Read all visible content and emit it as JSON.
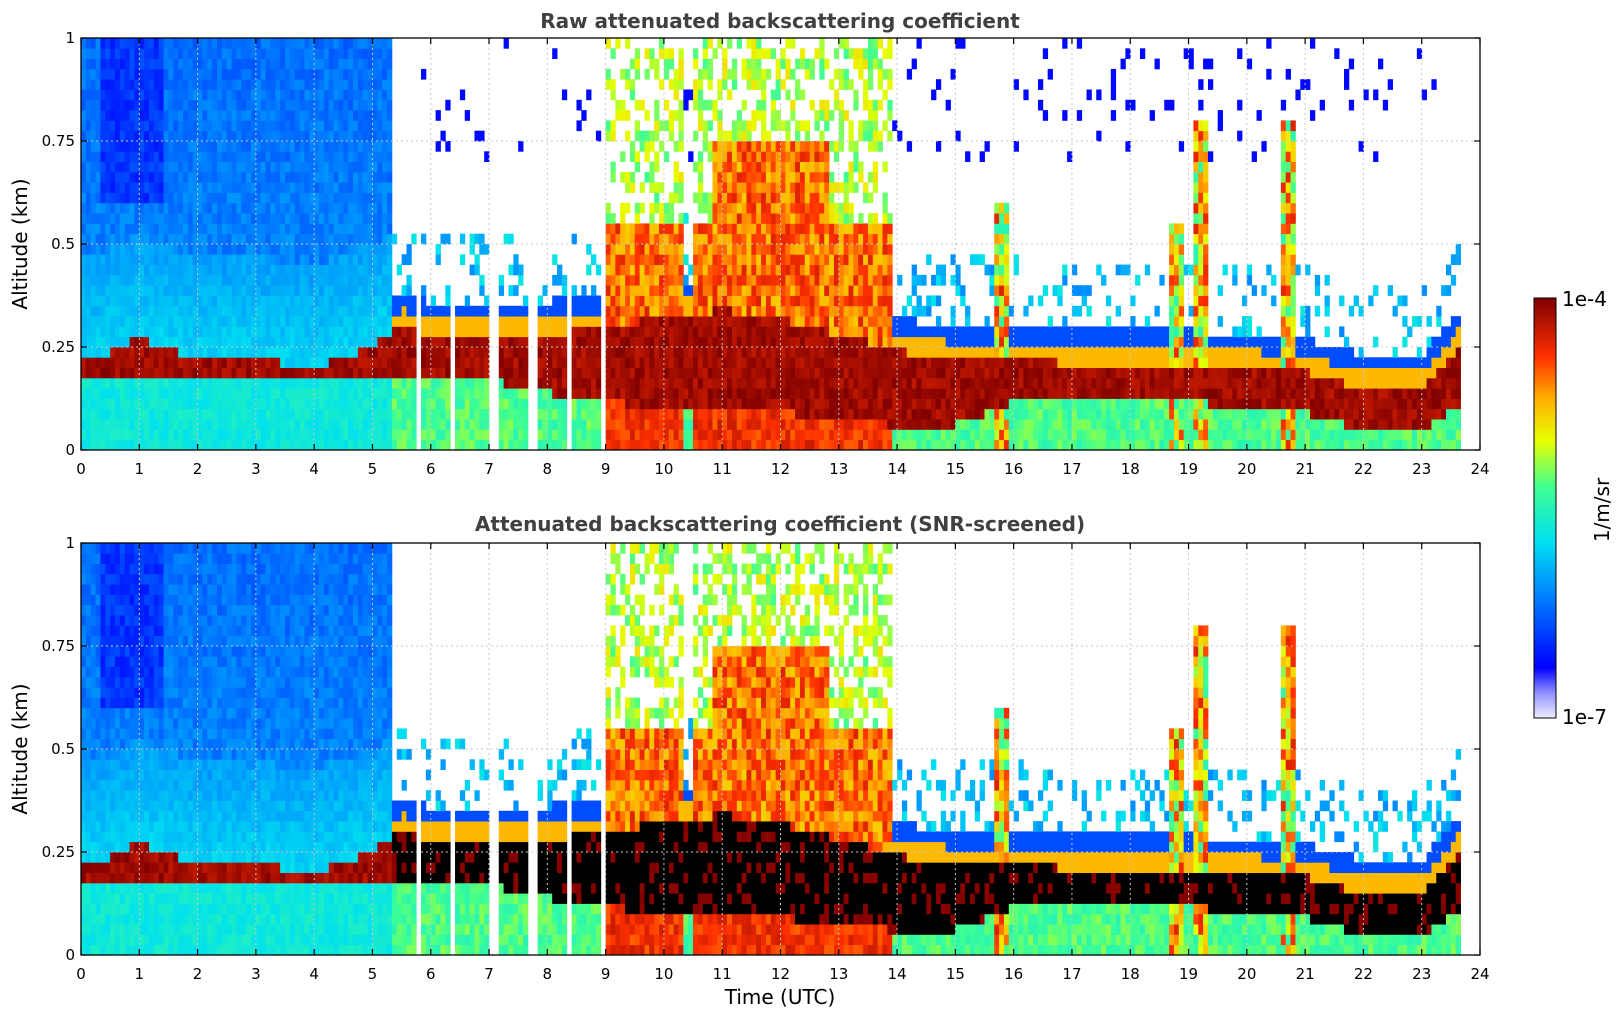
{
  "chart_data": [
    {
      "type": "heatmap",
      "title": "Raw attenuated backscattering coefficient",
      "xlabel": "",
      "ylabel": "Altitude (km)",
      "xlim": [
        0,
        24
      ],
      "ylim": [
        0,
        1
      ],
      "x_ticks": [
        "0",
        "1",
        "2",
        "3",
        "4",
        "5",
        "6",
        "7",
        "8",
        "9",
        "10",
        "11",
        "12",
        "13",
        "14",
        "15",
        "16",
        "17",
        "18",
        "19",
        "20",
        "21",
        "22",
        "23",
        "24"
      ],
      "y_ticks": [
        "0",
        "0.25",
        "0.5",
        "0.75",
        "1"
      ],
      "grid": true,
      "screened": false
    },
    {
      "type": "heatmap",
      "title": "Attenuated backscattering coefficient (SNR-screened)",
      "xlabel": "Time (UTC)",
      "ylabel": "Altitude (km)",
      "xlim": [
        0,
        24
      ],
      "ylim": [
        0,
        1
      ],
      "x_ticks": [
        "0",
        "1",
        "2",
        "3",
        "4",
        "5",
        "6",
        "7",
        "8",
        "9",
        "10",
        "11",
        "12",
        "13",
        "14",
        "15",
        "16",
        "17",
        "18",
        "19",
        "20",
        "21",
        "22",
        "23",
        "24"
      ],
      "y_ticks": [
        "0",
        "0.25",
        "0.5",
        "0.75",
        "1"
      ],
      "grid": true,
      "screened": true
    }
  ],
  "colorbar": {
    "label": "1/m/sr",
    "max_label": "1e-4",
    "min_label": "1e-7",
    "scale": "log",
    "colormap": "jet"
  },
  "features": {
    "layer_top_km": [
      [
        0,
        0.22
      ],
      [
        0.3,
        0.22
      ],
      [
        0.6,
        0.25
      ],
      [
        1,
        0.27
      ],
      [
        1.4,
        0.25
      ],
      [
        2,
        0.22
      ],
      [
        3,
        0.22
      ],
      [
        4,
        0.2
      ],
      [
        5,
        0.25
      ],
      [
        5.5,
        0.3
      ],
      [
        6,
        0.28
      ],
      [
        7,
        0.28
      ],
      [
        8,
        0.28
      ],
      [
        9,
        0.3
      ],
      [
        10,
        0.32
      ],
      [
        11,
        0.34
      ],
      [
        12,
        0.32
      ],
      [
        12.5,
        0.3
      ],
      [
        13,
        0.28
      ],
      [
        13.8,
        0.25
      ],
      [
        14,
        0.24
      ],
      [
        15,
        0.22
      ],
      [
        16,
        0.22
      ],
      [
        17,
        0.21
      ],
      [
        18,
        0.21
      ],
      [
        19,
        0.21
      ],
      [
        20,
        0.2
      ],
      [
        21,
        0.19
      ],
      [
        22,
        0.15
      ],
      [
        23,
        0.15
      ],
      [
        23.7,
        0.26
      ]
    ],
    "layer_bottom_km": [
      [
        0,
        0.17
      ],
      [
        1,
        0.18
      ],
      [
        2,
        0.17
      ],
      [
        4,
        0.17
      ],
      [
        5,
        0.18
      ],
      [
        6,
        0.18
      ],
      [
        7,
        0.17
      ],
      [
        8,
        0.14
      ],
      [
        9,
        0.12
      ],
      [
        10,
        0.1
      ],
      [
        11,
        0.09
      ],
      [
        12,
        0.09
      ],
      [
        13,
        0.08
      ],
      [
        14,
        0.06
      ],
      [
        15,
        0.06
      ],
      [
        16,
        0.12
      ],
      [
        17,
        0.12
      ],
      [
        18,
        0.12
      ],
      [
        19,
        0.12
      ],
      [
        20,
        0.1
      ],
      [
        21,
        0.09
      ],
      [
        22,
        0.05
      ],
      [
        23,
        0.04
      ],
      [
        23.7,
        0.12
      ]
    ],
    "data_end_hour": 23.65,
    "gap_hours": [
      5.82,
      6.4,
      7.08,
      7.75,
      8.35,
      8.93
    ],
    "cloud_hours": [
      [
        9,
        10.3
      ],
      [
        10.5,
        13.9
      ]
    ],
    "plume_peaks": [
      [
        15.8,
        0.6
      ],
      [
        19.2,
        0.8
      ],
      [
        20.7,
        0.8
      ],
      [
        18.8,
        0.55
      ]
    ]
  }
}
